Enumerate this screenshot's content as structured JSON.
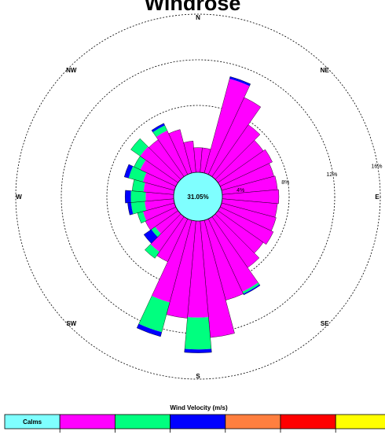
{
  "chart_data": {
    "type": "windrose",
    "title": "Windrose",
    "calms_percent": "31.05%",
    "directions": [
      "N",
      "NE",
      "E",
      "SE",
      "S",
      "SW",
      "W",
      "NW"
    ],
    "rings": [
      {
        "label": "4%",
        "value": 4
      },
      {
        "label": "8%",
        "value": 8
      },
      {
        "label": "12%",
        "value": 12
      },
      {
        "label": "16%",
        "value": 16
      }
    ],
    "ring_label_bearing_deg": 80,
    "max_ring": 16,
    "legend": {
      "title": "Wind Velocity (m/s)",
      "calms_label": "Calms",
      "classes": [
        {
          "color": "#7fffff",
          "label": "Calms"
        },
        {
          "color": "#ff00ff",
          "label": ""
        },
        {
          "color": "#00ff7f",
          "label": ""
        },
        {
          "color": "#0000ff",
          "label": ""
        },
        {
          "color": "#ff7f3f",
          "label": ""
        },
        {
          "color": "#ff0000",
          "label": ""
        },
        {
          "color": "#ffff00",
          "label": ""
        }
      ]
    },
    "calm_circle_percent": 2,
    "sector_halfwidth_deg": 5,
    "colors": [
      "#ff00ff",
      "#00ff7f",
      "#0000ff"
    ],
    "sectors": [
      {
        "dir": 0,
        "v": [
          2.3,
          0,
          0
        ]
      },
      {
        "dir": 10,
        "v": [
          2.3,
          0,
          0
        ]
      },
      {
        "dir": 20,
        "v": [
          8.7,
          0,
          0.2
        ]
      },
      {
        "dir": 30,
        "v": [
          7.6,
          0,
          0
        ]
      },
      {
        "dir": 40,
        "v": [
          5.7,
          0,
          0
        ]
      },
      {
        "dir": 50,
        "v": [
          5.0,
          0,
          0
        ]
      },
      {
        "dir": 60,
        "v": [
          5.2,
          0,
          0
        ]
      },
      {
        "dir": 70,
        "v": [
          4.9,
          0,
          0
        ]
      },
      {
        "dir": 80,
        "v": [
          5.0,
          0,
          0
        ]
      },
      {
        "dir": 90,
        "v": [
          5.1,
          0,
          0
        ]
      },
      {
        "dir": 100,
        "v": [
          5.0,
          0,
          0
        ]
      },
      {
        "dir": 110,
        "v": [
          5.1,
          0,
          0
        ]
      },
      {
        "dir": 120,
        "v": [
          5.3,
          0,
          0
        ]
      },
      {
        "dir": 130,
        "v": [
          5.0,
          0,
          0
        ]
      },
      {
        "dir": 140,
        "v": [
          5.6,
          0,
          0
        ]
      },
      {
        "dir": 150,
        "v": [
          7.2,
          0.2,
          0.1
        ]
      },
      {
        "dir": 160,
        "v": [
          7.4,
          0,
          0
        ]
      },
      {
        "dir": 170,
        "v": [
          10.4,
          0,
          0
        ]
      },
      {
        "dir": 180,
        "v": [
          8.6,
          2.8,
          0.3
        ]
      },
      {
        "dir": 190,
        "v": [
          8.7,
          0,
          0
        ]
      },
      {
        "dir": 200,
        "v": [
          7.6,
          2.7,
          0.4
        ]
      },
      {
        "dir": 210,
        "v": [
          4.3,
          0,
          0
        ]
      },
      {
        "dir": 220,
        "v": [
          3.9,
          0.7,
          0
        ]
      },
      {
        "dir": 230,
        "v": [
          2.6,
          0.4,
          0.8
        ]
      },
      {
        "dir": 240,
        "v": [
          3.1,
          0,
          0
        ]
      },
      {
        "dir": 250,
        "v": [
          3.0,
          0.5,
          0
        ]
      },
      {
        "dir": 260,
        "v": [
          2.7,
          1.2,
          0.3
        ]
      },
      {
        "dir": 270,
        "v": [
          2.6,
          1.3,
          0.5
        ]
      },
      {
        "dir": 280,
        "v": [
          2.8,
          1.0,
          0
        ]
      },
      {
        "dir": 290,
        "v": [
          3.0,
          1.3,
          0.4
        ]
      },
      {
        "dir": 300,
        "v": [
          3.6,
          0.6,
          0
        ]
      },
      {
        "dir": 310,
        "v": [
          4.2,
          1.0,
          0
        ]
      },
      {
        "dir": 320,
        "v": [
          4.1,
          0,
          0
        ]
      },
      {
        "dir": 330,
        "v": [
          4.4,
          0.5,
          0.2
        ]
      },
      {
        "dir": 340,
        "v": [
          4.1,
          0,
          0
        ]
      },
      {
        "dir": 350,
        "v": [
          2.9,
          0,
          0
        ]
      }
    ]
  }
}
